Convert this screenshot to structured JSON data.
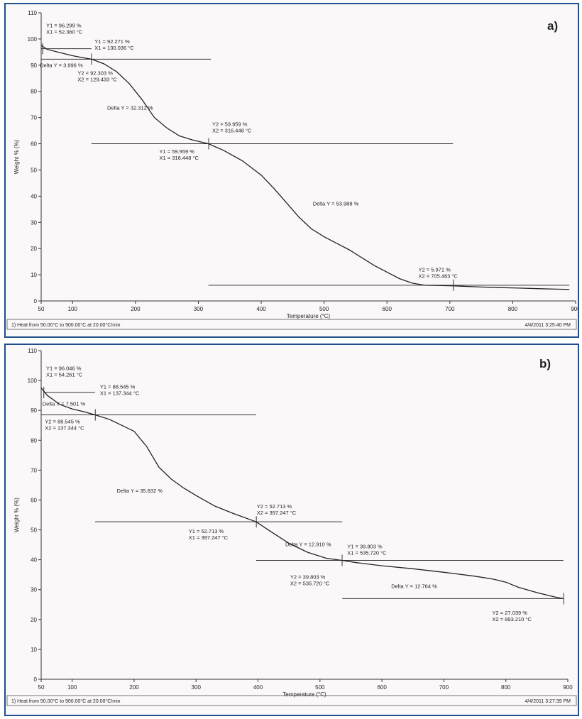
{
  "chart_data": [
    {
      "type": "line",
      "panel_label": "a)",
      "xlabel": "Temperature (°C)",
      "ylabel": "Weight % (%)",
      "xlim": [
        50,
        900
      ],
      "ylim": [
        0,
        110
      ],
      "x_ticks": [
        50,
        100,
        200,
        300,
        400,
        500,
        600,
        700,
        800,
        900
      ],
      "y_ticks": [
        0,
        10,
        20,
        30,
        40,
        50,
        60,
        70,
        80,
        90,
        100,
        110
      ],
      "grid": false,
      "footer_left": "1)   Heat from 50.00°C to 900.00°C at 20.00°C/min",
      "footer_right": "4/4/2011 3:25:40 PM",
      "series": [
        {
          "x": [
            50,
            60,
            80,
            100,
            120,
            130,
            150,
            170,
            190,
            210,
            230,
            250,
            270,
            290,
            316,
            340,
            370,
            400,
            420,
            440,
            460,
            480,
            500,
            520,
            540,
            560,
            580,
            600,
            620,
            640,
            660,
            680,
            700,
            720,
            750,
            780,
            810,
            840,
            870,
            890
          ],
          "y": [
            97.5,
            96,
            94.8,
            93.6,
            92.7,
            92.3,
            90.5,
            87.5,
            83,
            77,
            70,
            66,
            63,
            61.5,
            60,
            57.5,
            53.5,
            48,
            43,
            37.5,
            32,
            27.5,
            24.5,
            22,
            19.5,
            16.5,
            13.5,
            11,
            8.5,
            6.8,
            6,
            5.9,
            5.8,
            5.6,
            5.3,
            5.1,
            4.9,
            4.7,
            4.5,
            4.4
          ]
        }
      ],
      "steps": [
        {
          "y": 96.3,
          "x_from": 50,
          "x_to": 130
        },
        {
          "y": 92.3,
          "x_from": 50,
          "x_to": 320
        },
        {
          "y": 60,
          "x_from": 130,
          "x_to": 705
        },
        {
          "y": 6,
          "x_from": 316,
          "x_to": 890
        }
      ],
      "markers": [
        {
          "x": 52.36,
          "y": 96.3
        },
        {
          "x": 130.04,
          "y": 92.3
        },
        {
          "x": 316.45,
          "y": 60
        },
        {
          "x": 705.48,
          "y": 6
        }
      ],
      "annotations": [
        {
          "lines": [
            "Y1 = 96.299 %",
            "X1 = 52.360 °C"
          ],
          "x": 58,
          "y": 104.5
        },
        {
          "lines": [
            "Y1 = 92.271 %",
            "X1 = 130.036 °C"
          ],
          "x": 135,
          "y": 98.3
        },
        {
          "lines": [
            "Delta Y = 3.996 %"
          ],
          "x": 48,
          "y": 89.3
        },
        {
          "lines": [
            "Y2 = 92.303 %",
            "X2 = 129.433 °C"
          ],
          "x": 108,
          "y": 86.3
        },
        {
          "lines": [
            "Delta Y = 32.312 %"
          ],
          "x": 155,
          "y": 73
        },
        {
          "lines": [
            "Y2 = 59.959 %",
            "X2 = 316.448 °C"
          ],
          "x": 322,
          "y": 66.8
        },
        {
          "lines": [
            "Y1 = 59.959 %",
            "X1 = 316.448 °C"
          ],
          "x": 238,
          "y": 56.3
        },
        {
          "lines": [
            "Delta Y = 53.988 %"
          ],
          "x": 482,
          "y": 36.5
        },
        {
          "lines": [
            "Y2 = 5.971 %",
            "X2 = 705.483 °C"
          ],
          "x": 650,
          "y": 11.2
        }
      ]
    },
    {
      "type": "line",
      "panel_label": "b)",
      "xlabel": "Temperature (°C)",
      "ylabel": "Weight % (%)",
      "xlim": [
        50,
        900
      ],
      "ylim": [
        0,
        110
      ],
      "x_ticks": [
        50,
        100,
        200,
        300,
        400,
        500,
        600,
        700,
        800,
        900
      ],
      "y_ticks": [
        0,
        10,
        20,
        30,
        40,
        50,
        60,
        70,
        80,
        90,
        100,
        110
      ],
      "grid": false,
      "footer_left": "1)   Heat from 50.00°C to 900.00°C at 20.00°C/min",
      "footer_right": "4/4/2011 3:27:39 PM",
      "series": [
        {
          "x": [
            50,
            60,
            80,
            100,
            120,
            137,
            160,
            180,
            200,
            220,
            240,
            260,
            280,
            300,
            330,
            360,
            397,
            420,
            450,
            480,
            510,
            535,
            560,
            600,
            650,
            700,
            750,
            780,
            800,
            820,
            850,
            880,
            893
          ],
          "y": [
            97.5,
            95,
            92,
            90.5,
            89.5,
            88.5,
            87,
            85,
            83,
            78,
            71,
            67,
            64,
            61.5,
            58,
            55.5,
            52.7,
            49.5,
            45.5,
            42.5,
            40.5,
            39.8,
            39,
            38,
            37,
            35.8,
            34.5,
            33.5,
            32.5,
            30.8,
            29,
            27.5,
            27
          ]
        }
      ],
      "steps": [
        {
          "y": 96,
          "x_from": 54,
          "x_to": 137
        },
        {
          "y": 88.5,
          "x_from": 50,
          "x_to": 397
        },
        {
          "y": 52.7,
          "x_from": 137,
          "x_to": 536
        },
        {
          "y": 39.8,
          "x_from": 397,
          "x_to": 893
        },
        {
          "y": 27,
          "x_from": 536,
          "x_to": 893
        }
      ],
      "markers": [
        {
          "x": 54.26,
          "y": 96
        },
        {
          "x": 137.34,
          "y": 88.5
        },
        {
          "x": 397.25,
          "y": 52.7
        },
        {
          "x": 535.72,
          "y": 39.8
        },
        {
          "x": 893.21,
          "y": 27
        }
      ],
      "annotations": [
        {
          "lines": [
            "Y1 = 96.046 %",
            "X1 = 54.261 °C"
          ],
          "x": 58,
          "y": 103.5
        },
        {
          "lines": [
            "Y1 = 88.545 %",
            "X1 = 137.344 °C"
          ],
          "x": 145,
          "y": 97.3
        },
        {
          "lines": [
            "Delta Y = 7.501 %"
          ],
          "x": 52,
          "y": 91.6
        },
        {
          "lines": [
            "Y2 = 88.545 %",
            "X2 = 137.344 °C"
          ],
          "x": 56,
          "y": 85.6
        },
        {
          "lines": [
            "Delta Y = 35.832 %"
          ],
          "x": 172,
          "y": 62.5
        },
        {
          "lines": [
            "Y2 = 52.713 %",
            "X2 = 397.247 °C"
          ],
          "x": 398,
          "y": 57.3
        },
        {
          "lines": [
            "Y1 = 52.713 %",
            "X1 = 397.247 °C"
          ],
          "x": 288,
          "y": 49
        },
        {
          "lines": [
            "Delta Y = 12.910 %"
          ],
          "x": 444,
          "y": 44.6
        },
        {
          "lines": [
            "Y1 = 39.803 %",
            "X1 = 535.720 °C"
          ],
          "x": 544,
          "y": 43.8
        },
        {
          "lines": [
            "Y2 = 39.803 %",
            "X2 = 535.720 °C"
          ],
          "x": 452,
          "y": 33.6
        },
        {
          "lines": [
            "Delta Y = 12.764 %"
          ],
          "x": 615,
          "y": 30.5
        },
        {
          "lines": [
            "Y2 = 27.039 %",
            "X2 = 893.210 °C"
          ],
          "x": 778,
          "y": 21.6
        }
      ]
    }
  ]
}
